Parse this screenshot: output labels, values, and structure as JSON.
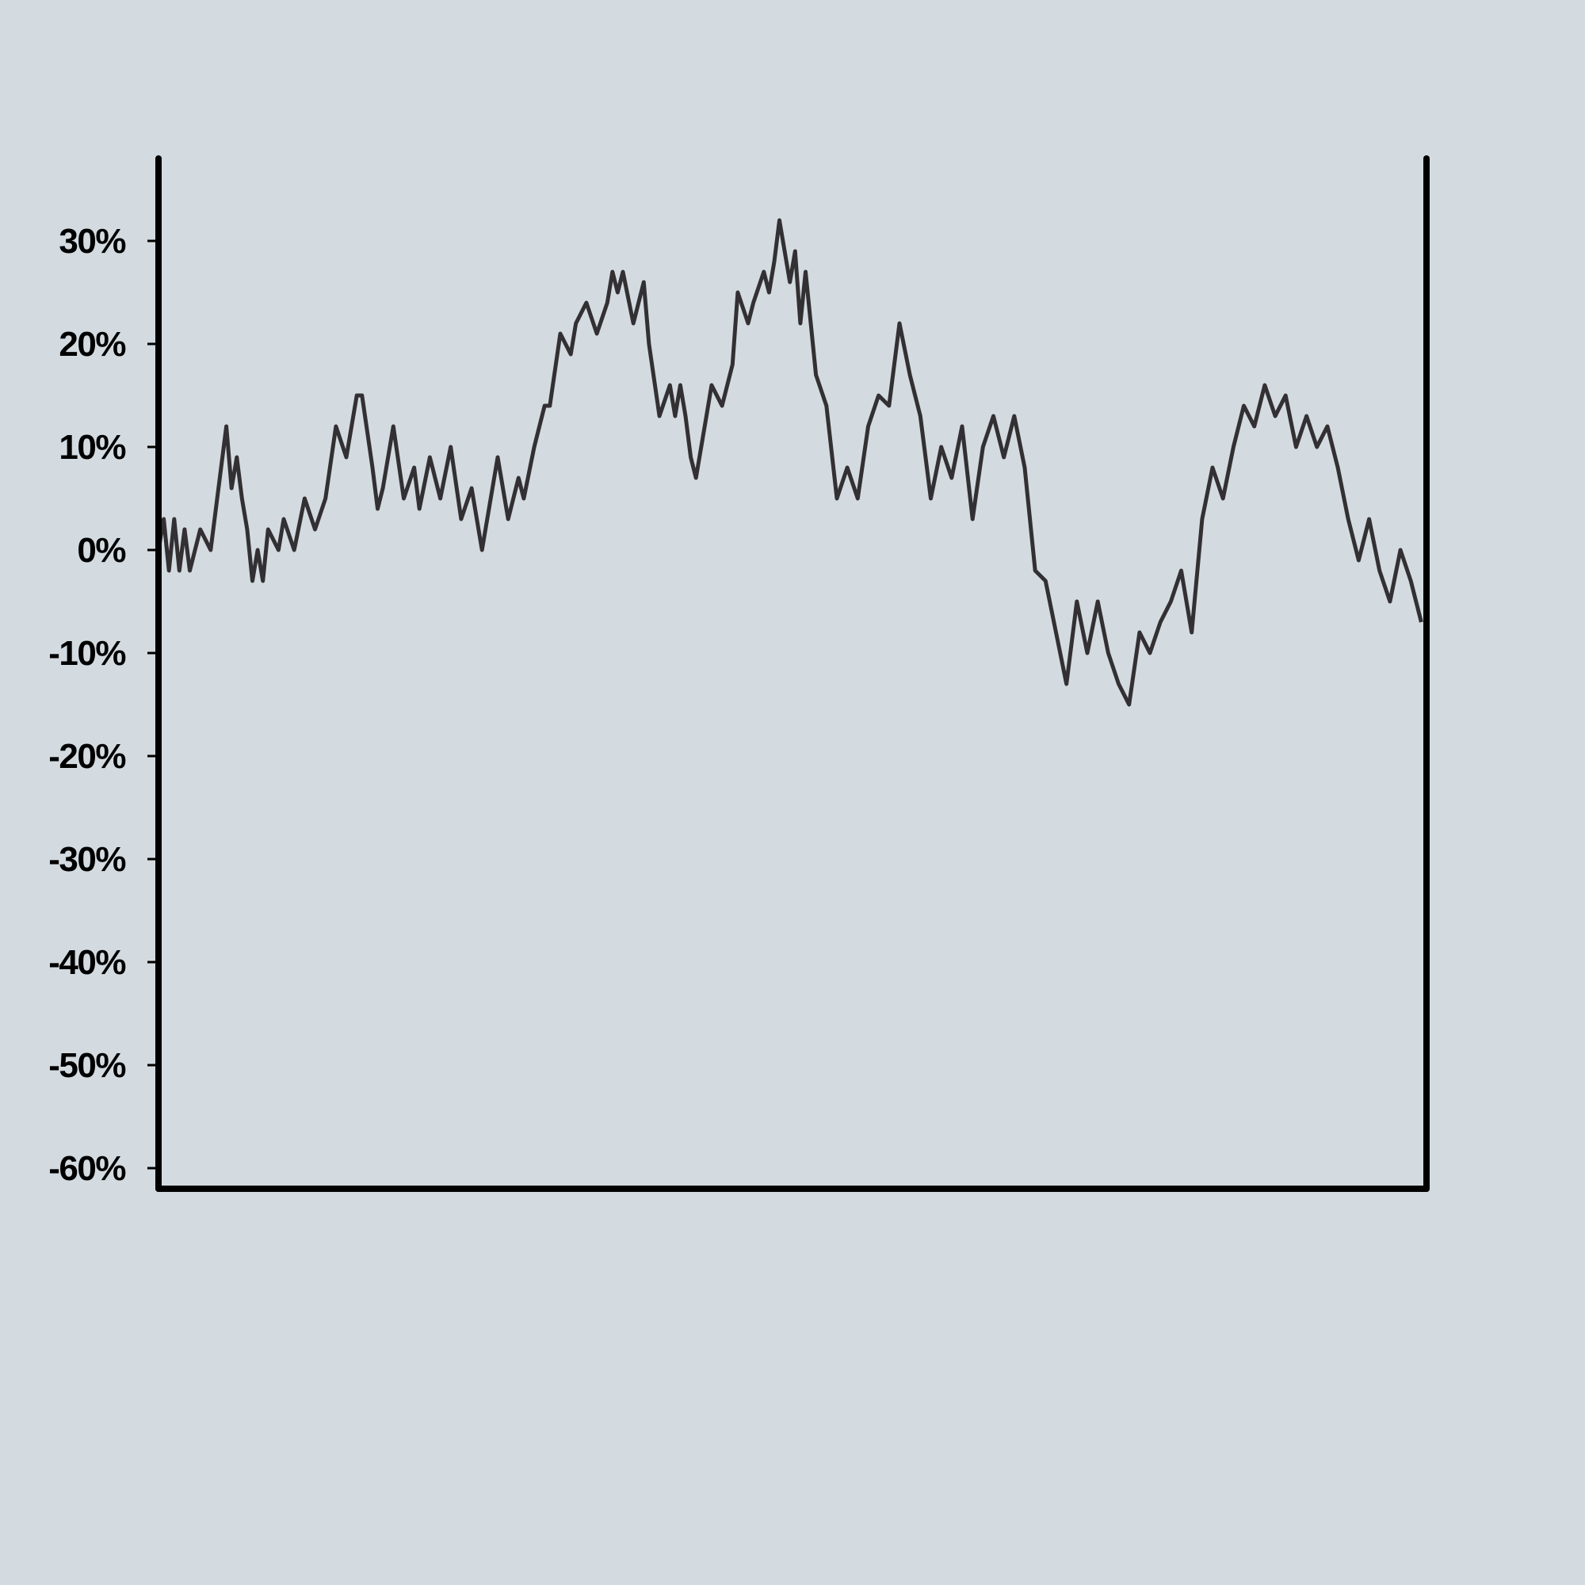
{
  "chart_data": [
    {
      "type": "line",
      "title": "",
      "xlabel": "",
      "ylabel": "",
      "x_range": [
        "2021-10-01",
        "2022-06-01"
      ],
      "ylim": [
        -62,
        38
      ],
      "yticks": [
        30,
        20,
        10,
        0,
        -10,
        -20,
        -30,
        -40,
        -50,
        -60
      ],
      "ytick_labels": [
        "30%",
        "20%",
        "10%",
        "0%",
        "-10%",
        "-20%",
        "-30%",
        "-40%",
        "-50%",
        "-60%"
      ],
      "grid": false,
      "legend": "none",
      "series": [
        {
          "role": "price",
          "color": "#333033",
          "points": [
            [
              "2021-10-01",
              0
            ],
            [
              "2021-10-02",
              3
            ],
            [
              "2021-10-03",
              -2
            ],
            [
              "2021-10-04",
              3
            ],
            [
              "2021-10-05",
              -2
            ],
            [
              "2021-10-06",
              2
            ],
            [
              "2021-10-07",
              -2
            ],
            [
              "2021-10-09",
              2
            ],
            [
              "2021-10-11",
              0
            ],
            [
              "2021-10-13",
              8
            ],
            [
              "2021-10-14",
              12
            ],
            [
              "2021-10-15",
              6
            ],
            [
              "2021-10-16",
              9
            ],
            [
              "2021-10-17",
              5
            ],
            [
              "2021-10-18",
              2
            ],
            [
              "2021-10-19",
              -3
            ],
            [
              "2021-10-20",
              0
            ],
            [
              "2021-10-21",
              -3
            ],
            [
              "2021-10-22",
              2
            ],
            [
              "2021-10-24",
              0
            ],
            [
              "2021-10-25",
              3
            ],
            [
              "2021-10-27",
              0
            ],
            [
              "2021-10-29",
              5
            ],
            [
              "2021-10-31",
              2
            ],
            [
              "2021-11-02",
              5
            ],
            [
              "2021-11-04",
              12
            ],
            [
              "2021-11-06",
              9
            ],
            [
              "2021-11-07",
              12
            ],
            [
              "2021-11-08",
              15
            ],
            [
              "2021-11-09",
              15
            ],
            [
              "2021-11-11",
              8
            ],
            [
              "2021-11-12",
              4
            ],
            [
              "2021-11-13",
              6
            ],
            [
              "2021-11-15",
              12
            ],
            [
              "2021-11-17",
              5
            ],
            [
              "2021-11-19",
              8
            ],
            [
              "2021-11-20",
              4
            ],
            [
              "2021-11-22",
              9
            ],
            [
              "2021-11-24",
              5
            ],
            [
              "2021-11-26",
              10
            ],
            [
              "2021-11-28",
              3
            ],
            [
              "2021-11-30",
              6
            ],
            [
              "2021-12-02",
              0
            ],
            [
              "2021-12-04",
              6
            ],
            [
              "2021-12-05",
              9
            ],
            [
              "2021-12-07",
              3
            ],
            [
              "2021-12-09",
              7
            ],
            [
              "2021-12-10",
              5
            ],
            [
              "2021-12-12",
              10
            ],
            [
              "2021-12-14",
              14
            ],
            [
              "2021-12-15",
              14
            ],
            [
              "2021-12-17",
              21
            ],
            [
              "2021-12-19",
              19
            ],
            [
              "2021-12-20",
              22
            ],
            [
              "2021-12-22",
              24
            ],
            [
              "2021-12-24",
              21
            ],
            [
              "2021-12-26",
              24
            ],
            [
              "2021-12-27",
              27
            ],
            [
              "2021-12-28",
              25
            ],
            [
              "2021-12-29",
              27
            ],
            [
              "2021-12-31",
              22
            ],
            [
              "2022-01-02",
              26
            ],
            [
              "2022-01-03",
              20
            ],
            [
              "2022-01-05",
              13
            ],
            [
              "2022-01-07",
              16
            ],
            [
              "2022-01-08",
              13
            ],
            [
              "2022-01-09",
              16
            ],
            [
              "2022-01-10",
              13
            ],
            [
              "2022-01-11",
              9
            ],
            [
              "2022-01-12",
              7
            ],
            [
              "2022-01-14",
              13
            ],
            [
              "2022-01-15",
              16
            ],
            [
              "2022-01-17",
              14
            ],
            [
              "2022-01-19",
              18
            ],
            [
              "2022-01-20",
              25
            ],
            [
              "2022-01-22",
              22
            ],
            [
              "2022-01-23",
              24
            ],
            [
              "2022-01-25",
              27
            ],
            [
              "2022-01-26",
              25
            ],
            [
              "2022-01-27",
              28
            ],
            [
              "2022-01-28",
              32
            ],
            [
              "2022-01-30",
              26
            ],
            [
              "2022-01-31",
              29
            ],
            [
              "2022-02-01",
              22
            ],
            [
              "2022-02-02",
              27
            ],
            [
              "2022-02-04",
              17
            ],
            [
              "2022-02-06",
              14
            ],
            [
              "2022-02-08",
              5
            ],
            [
              "2022-02-10",
              8
            ],
            [
              "2022-02-12",
              5
            ],
            [
              "2022-02-14",
              12
            ],
            [
              "2022-02-16",
              15
            ],
            [
              "2022-02-18",
              14
            ],
            [
              "2022-02-20",
              22
            ],
            [
              "2022-02-22",
              17
            ],
            [
              "2022-02-24",
              13
            ],
            [
              "2022-02-26",
              5
            ],
            [
              "2022-02-28",
              10
            ],
            [
              "2022-03-02",
              7
            ],
            [
              "2022-03-04",
              12
            ],
            [
              "2022-03-06",
              3
            ],
            [
              "2022-03-08",
              10
            ],
            [
              "2022-03-10",
              13
            ],
            [
              "2022-03-12",
              9
            ],
            [
              "2022-03-14",
              13
            ],
            [
              "2022-03-16",
              8
            ],
            [
              "2022-03-18",
              -2
            ],
            [
              "2022-03-20",
              -3
            ],
            [
              "2022-03-22",
              -8
            ],
            [
              "2022-03-24",
              -13
            ],
            [
              "2022-03-26",
              -5
            ],
            [
              "2022-03-28",
              -10
            ],
            [
              "2022-03-30",
              -5
            ],
            [
              "2022-04-01",
              -10
            ],
            [
              "2022-04-03",
              -13
            ],
            [
              "2022-04-05",
              -15
            ],
            [
              "2022-04-07",
              -8
            ],
            [
              "2022-04-09",
              -10
            ],
            [
              "2022-04-11",
              -7
            ],
            [
              "2022-04-13",
              -5
            ],
            [
              "2022-04-15",
              -2
            ],
            [
              "2022-04-17",
              -8
            ],
            [
              "2022-04-19",
              3
            ],
            [
              "2022-04-21",
              8
            ],
            [
              "2022-04-23",
              5
            ],
            [
              "2022-04-25",
              10
            ],
            [
              "2022-04-27",
              14
            ],
            [
              "2022-04-29",
              12
            ],
            [
              "2022-05-01",
              16
            ],
            [
              "2022-05-03",
              13
            ],
            [
              "2022-05-05",
              15
            ],
            [
              "2022-05-07",
              10
            ],
            [
              "2022-05-09",
              13
            ],
            [
              "2022-05-11",
              10
            ],
            [
              "2022-05-13",
              12
            ],
            [
              "2022-05-15",
              8
            ],
            [
              "2022-05-17",
              3
            ],
            [
              "2022-05-19",
              -1
            ],
            [
              "2022-05-21",
              3
            ],
            [
              "2022-05-23",
              -2
            ],
            [
              "2022-05-25",
              -5
            ],
            [
              "2022-05-27",
              0
            ],
            [
              "2022-05-29",
              -3
            ],
            [
              "2022-05-31",
              -7
            ]
          ]
        }
      ]
    }
  ]
}
